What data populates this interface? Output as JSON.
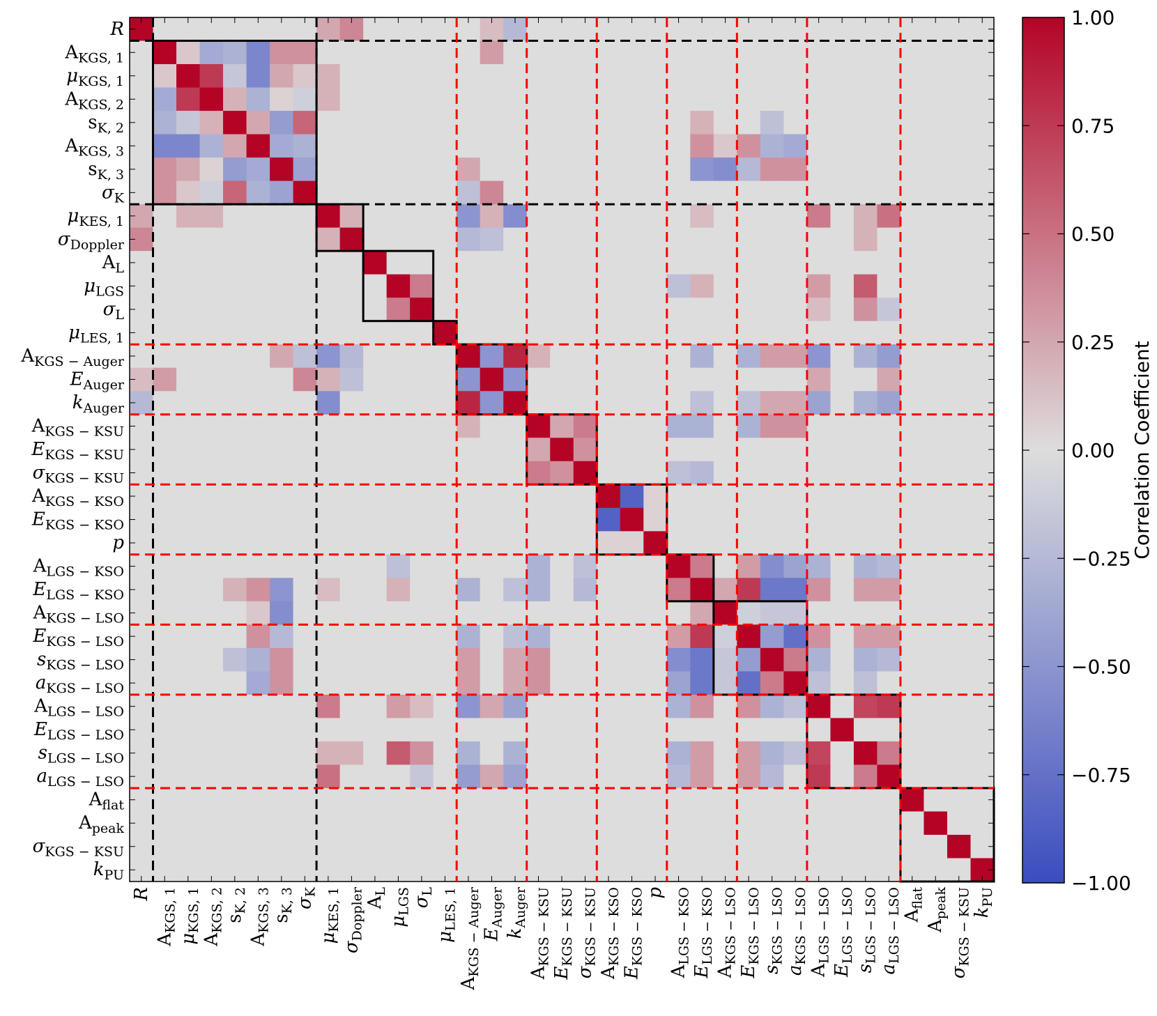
{
  "chart_data": {
    "type": "heatmap",
    "title": "",
    "colorbar": {
      "label": "Correlation Coefficient",
      "range": [
        -1,
        1
      ],
      "ticks": [
        "1.00",
        "0.75",
        "0.50",
        "0.25",
        "0.00",
        "−0.25",
        "−0.50",
        "−0.75",
        "−1.00"
      ],
      "low_color": "#3b4cc0",
      "mid_color": "#dddddd",
      "high_color": "#b40426"
    },
    "parameters": [
      {
        "base": "R",
        "sub": "",
        "italic": true
      },
      {
        "base": "A",
        "sub": "KGS, 1",
        "italic": false
      },
      {
        "base": "μ",
        "sub": "KGS, 1",
        "italic": true
      },
      {
        "base": "A",
        "sub": "KGS, 2",
        "italic": false
      },
      {
        "base": "s",
        "sub": "K, 2",
        "italic": false
      },
      {
        "base": "A",
        "sub": "KGS, 3",
        "italic": false
      },
      {
        "base": "s",
        "sub": "K, 3",
        "italic": false
      },
      {
        "base": "σ",
        "sub": "K",
        "italic": true
      },
      {
        "base": "μ",
        "sub": "KES, 1",
        "italic": true
      },
      {
        "base": "σ",
        "sub": "Doppler",
        "italic": true
      },
      {
        "base": "A",
        "sub": "L",
        "italic": false
      },
      {
        "base": "μ",
        "sub": "LGS",
        "italic": true
      },
      {
        "base": "σ",
        "sub": "L",
        "italic": true
      },
      {
        "base": "μ",
        "sub": "LES, 1",
        "italic": true
      },
      {
        "base": "A",
        "sub": "KGS − Auger",
        "italic": false
      },
      {
        "base": "E",
        "sub": "Auger",
        "italic": true
      },
      {
        "base": "k",
        "sub": "Auger",
        "italic": true
      },
      {
        "base": "A",
        "sub": "KGS − KSU",
        "italic": false
      },
      {
        "base": "E",
        "sub": "KGS − KSU",
        "italic": true
      },
      {
        "base": "σ",
        "sub": "KGS − KSU",
        "italic": true
      },
      {
        "base": "A",
        "sub": "KGS − KSO",
        "italic": false
      },
      {
        "base": "E",
        "sub": "KGS − KSO",
        "italic": true
      },
      {
        "base": "p",
        "sub": "",
        "italic": true
      },
      {
        "base": "A",
        "sub": "LGS − KSO",
        "italic": false
      },
      {
        "base": "E",
        "sub": "LGS − KSO",
        "italic": true
      },
      {
        "base": "A",
        "sub": "KGS − LSO",
        "italic": false
      },
      {
        "base": "E",
        "sub": "KGS − LSO",
        "italic": true
      },
      {
        "base": "s",
        "sub": "KGS − LSO",
        "italic": true
      },
      {
        "base": "a",
        "sub": "KGS − LSO",
        "italic": true
      },
      {
        "base": "A",
        "sub": "LGS − LSO",
        "italic": false
      },
      {
        "base": "E",
        "sub": "LGS − LSO",
        "italic": true
      },
      {
        "base": "s",
        "sub": "LGS − LSO",
        "italic": true
      },
      {
        "base": "a",
        "sub": "LGS − LSO",
        "italic": true
      },
      {
        "base": "A",
        "sub": "flat",
        "italic": false
      },
      {
        "base": "A",
        "sub": "peak",
        "italic": false
      },
      {
        "base": "σ",
        "sub": "KGS − KSU",
        "italic": true
      },
      {
        "base": "k",
        "sub": "PU",
        "italic": true
      }
    ],
    "correlations": [
      [
        0,
        9,
        0.4
      ],
      [
        0,
        15,
        0.15
      ],
      [
        0,
        16,
        -0.25
      ],
      [
        0,
        8,
        0.25
      ],
      [
        1,
        2,
        0.1
      ],
      [
        1,
        3,
        -0.35
      ],
      [
        1,
        4,
        -0.3
      ],
      [
        1,
        5,
        -0.6
      ],
      [
        1,
        6,
        0.35
      ],
      [
        1,
        7,
        0.35
      ],
      [
        1,
        15,
        0.3
      ],
      [
        2,
        3,
        0.75
      ],
      [
        2,
        4,
        -0.15
      ],
      [
        2,
        5,
        -0.6
      ],
      [
        2,
        6,
        0.25
      ],
      [
        2,
        7,
        0.1
      ],
      [
        2,
        8,
        0.2
      ],
      [
        3,
        4,
        0.2
      ],
      [
        3,
        5,
        -0.3
      ],
      [
        3,
        6,
        0.05
      ],
      [
        3,
        7,
        -0.1
      ],
      [
        3,
        8,
        0.2
      ],
      [
        4,
        5,
        0.25
      ],
      [
        4,
        6,
        -0.45
      ],
      [
        4,
        7,
        0.55
      ],
      [
        4,
        24,
        0.2
      ],
      [
        4,
        27,
        -0.2
      ],
      [
        5,
        6,
        -0.35
      ],
      [
        5,
        7,
        -0.3
      ],
      [
        5,
        24,
        0.35
      ],
      [
        5,
        26,
        0.35
      ],
      [
        5,
        27,
        -0.3
      ],
      [
        5,
        28,
        -0.35
      ],
      [
        5,
        25,
        0.1
      ],
      [
        6,
        7,
        -0.4
      ],
      [
        6,
        14,
        0.25
      ],
      [
        6,
        24,
        -0.5
      ],
      [
        6,
        25,
        -0.55
      ],
      [
        6,
        26,
        -0.25
      ],
      [
        6,
        27,
        0.35
      ],
      [
        6,
        28,
        0.35
      ],
      [
        7,
        15,
        0.4
      ],
      [
        7,
        14,
        -0.2
      ],
      [
        8,
        9,
        0.2
      ],
      [
        8,
        14,
        -0.5
      ],
      [
        8,
        15,
        0.2
      ],
      [
        8,
        16,
        -0.55
      ],
      [
        8,
        29,
        0.45
      ],
      [
        8,
        32,
        0.5
      ],
      [
        8,
        31,
        0.2
      ],
      [
        8,
        24,
        0.15
      ],
      [
        9,
        14,
        -0.25
      ],
      [
        9,
        15,
        -0.2
      ],
      [
        9,
        31,
        0.2
      ],
      [
        11,
        12,
        0.45
      ],
      [
        11,
        29,
        0.3
      ],
      [
        11,
        31,
        0.6
      ],
      [
        11,
        23,
        -0.2
      ],
      [
        11,
        24,
        0.2
      ],
      [
        12,
        31,
        0.35
      ],
      [
        12,
        29,
        0.15
      ],
      [
        12,
        32,
        -0.15
      ],
      [
        14,
        15,
        -0.5
      ],
      [
        14,
        16,
        0.85
      ],
      [
        14,
        24,
        -0.3
      ],
      [
        14,
        26,
        -0.3
      ],
      [
        14,
        27,
        0.3
      ],
      [
        14,
        28,
        0.3
      ],
      [
        14,
        29,
        -0.5
      ],
      [
        14,
        32,
        -0.45
      ],
      [
        14,
        31,
        -0.3
      ],
      [
        14,
        6,
        0.25
      ],
      [
        14,
        17,
        0.2
      ],
      [
        15,
        16,
        -0.5
      ],
      [
        15,
        29,
        0.25
      ],
      [
        15,
        32,
        0.25
      ],
      [
        16,
        24,
        -0.2
      ],
      [
        16,
        26,
        -0.2
      ],
      [
        16,
        27,
        0.25
      ],
      [
        16,
        28,
        0.25
      ],
      [
        16,
        29,
        -0.4
      ],
      [
        16,
        32,
        -0.4
      ],
      [
        16,
        31,
        -0.3
      ],
      [
        17,
        18,
        0.25
      ],
      [
        17,
        19,
        0.45
      ],
      [
        17,
        23,
        -0.3
      ],
      [
        17,
        24,
        -0.3
      ],
      [
        17,
        27,
        0.35
      ],
      [
        17,
        28,
        0.35
      ],
      [
        17,
        26,
        -0.3
      ],
      [
        18,
        19,
        0.35
      ],
      [
        19,
        23,
        -0.2
      ],
      [
        19,
        24,
        -0.25
      ],
      [
        20,
        21,
        -0.85
      ],
      [
        20,
        22,
        0.05
      ],
      [
        21,
        22,
        0.05
      ],
      [
        23,
        24,
        0.45
      ],
      [
        23,
        26,
        0.3
      ],
      [
        23,
        27,
        -0.55
      ],
      [
        23,
        28,
        -0.4
      ],
      [
        23,
        29,
        -0.3
      ],
      [
        23,
        31,
        -0.3
      ],
      [
        23,
        32,
        -0.25
      ],
      [
        24,
        26,
        0.75
      ],
      [
        24,
        27,
        -0.7
      ],
      [
        24,
        28,
        -0.7
      ],
      [
        24,
        29,
        0.35
      ],
      [
        24,
        31,
        0.3
      ],
      [
        24,
        32,
        0.3
      ],
      [
        24,
        25,
        0.25
      ],
      [
        25,
        26,
        -0.1
      ],
      [
        25,
        27,
        -0.15
      ],
      [
        25,
        28,
        -0.15
      ],
      [
        26,
        27,
        -0.45
      ],
      [
        26,
        28,
        -0.75
      ],
      [
        26,
        29,
        0.35
      ],
      [
        26,
        31,
        0.3
      ],
      [
        26,
        32,
        0.3
      ],
      [
        27,
        28,
        0.45
      ],
      [
        27,
        29,
        -0.3
      ],
      [
        27,
        31,
        -0.3
      ],
      [
        27,
        32,
        -0.25
      ],
      [
        28,
        29,
        -0.2
      ],
      [
        28,
        31,
        -0.2
      ],
      [
        29,
        31,
        0.7
      ],
      [
        29,
        32,
        0.75
      ],
      [
        31,
        32,
        0.45
      ]
    ],
    "blocks": [
      [
        1,
        8
      ],
      [
        8,
        10
      ],
      [
        10,
        13
      ],
      [
        13,
        14
      ],
      [
        14,
        17
      ],
      [
        17,
        20
      ],
      [
        20,
        23
      ],
      [
        23,
        25
      ],
      [
        25,
        29
      ],
      [
        29,
        33
      ],
      [
        33,
        37
      ]
    ],
    "black_dashed_lines": [
      1,
      8
    ],
    "red_dashed_lines": [
      14,
      17,
      20,
      23,
      26,
      29,
      33
    ]
  }
}
